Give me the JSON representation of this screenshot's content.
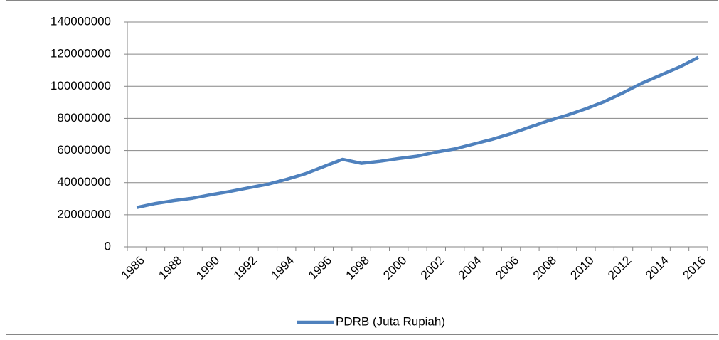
{
  "chart_data": {
    "type": "line",
    "categories": [
      "1986",
      null,
      "1988",
      null,
      "1990",
      null,
      "1992",
      null,
      "1994",
      null,
      "1996",
      null,
      "1998",
      null,
      "2000",
      null,
      "2002",
      null,
      "2004",
      null,
      "2006",
      null,
      "2008",
      null,
      "2010",
      null,
      "2012",
      null,
      "2014",
      null,
      "2016"
    ],
    "series": [
      {
        "name": "PDRB (Juta Rupiah)",
        "color": "#4f81bd",
        "values": [
          24500000,
          27000000,
          28800000,
          30300000,
          32500000,
          34500000,
          36800000,
          39000000,
          42000000,
          45500000,
          50000000,
          54500000,
          52000000,
          53300000,
          55000000,
          56500000,
          59000000,
          61000000,
          64000000,
          67000000,
          70500000,
          74500000,
          78500000,
          82000000,
          86000000,
          90500000,
          96000000,
          102000000,
          107000000,
          112000000,
          118000000
        ]
      }
    ],
    "ylim": [
      0,
      140000000
    ],
    "yticks": [
      0,
      20000000,
      40000000,
      60000000,
      80000000,
      100000000,
      120000000,
      140000000
    ],
    "grid": true,
    "legend": "bottom"
  }
}
